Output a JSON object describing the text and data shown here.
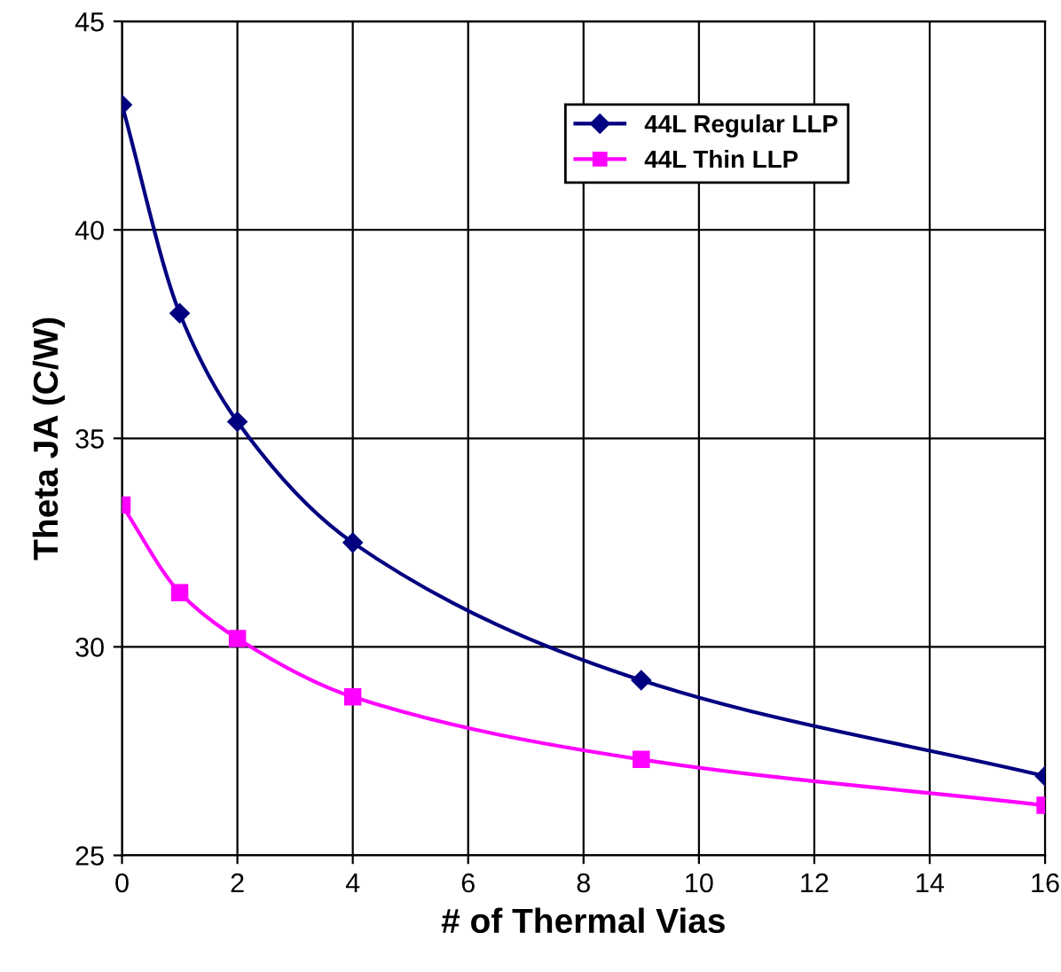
{
  "chart_data": {
    "type": "line",
    "xlabel": "# of Thermal Vias",
    "ylabel": "Theta JA (C/W)",
    "x": [
      0,
      1,
      2,
      4,
      9,
      16
    ],
    "series": [
      {
        "name": "44L Regular LLP",
        "color": "#000080",
        "marker": "diamond",
        "values": [
          43,
          38,
          35.4,
          32.5,
          29.2,
          26.9
        ]
      },
      {
        "name": "44L Thin LLP",
        "color": "#ff00ff",
        "marker": "square",
        "values": [
          33.4,
          31.3,
          30.2,
          28.8,
          27.3,
          26.2
        ]
      }
    ],
    "xlim": [
      0,
      16
    ],
    "xticks": [
      0,
      2,
      4,
      6,
      8,
      10,
      12,
      14,
      16
    ],
    "ylim": [
      25,
      45
    ],
    "yticks": [
      25,
      30,
      35,
      40,
      45
    ],
    "grid": true,
    "legend": "top right",
    "line_style": "solid"
  }
}
